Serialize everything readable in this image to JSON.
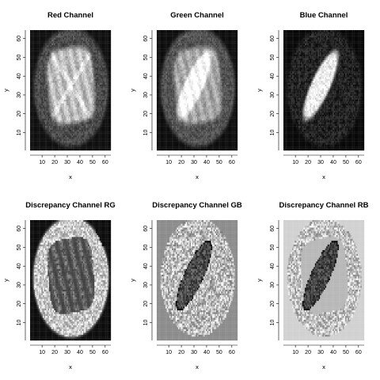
{
  "chart_data": [
    {
      "type": "heatmap",
      "title": "Red Channel",
      "xlabel": "x",
      "ylabel": "y",
      "xlim": [
        1,
        64
      ],
      "ylim": [
        1,
        64
      ],
      "xticks": [
        "10",
        "20",
        "30",
        "40",
        "50",
        "60"
      ],
      "yticks": [
        "10",
        "20",
        "30",
        "40",
        "50",
        "60"
      ],
      "pattern": "red"
    },
    {
      "type": "heatmap",
      "title": "Green Channel",
      "xlabel": "x",
      "ylabel": "y",
      "xlim": [
        1,
        64
      ],
      "ylim": [
        1,
        64
      ],
      "xticks": [
        "10",
        "20",
        "30",
        "40",
        "50",
        "60"
      ],
      "yticks": [
        "10",
        "20",
        "30",
        "40",
        "50",
        "60"
      ],
      "pattern": "green"
    },
    {
      "type": "heatmap",
      "title": "Blue Channel",
      "xlabel": "x",
      "ylabel": "y",
      "xlim": [
        1,
        64
      ],
      "ylim": [
        1,
        64
      ],
      "xticks": [
        "10",
        "20",
        "30",
        "40",
        "50",
        "60"
      ],
      "yticks": [
        "10",
        "20",
        "30",
        "40",
        "50",
        "60"
      ],
      "pattern": "blue"
    },
    {
      "type": "heatmap",
      "title": "Discrepancy Channel RG",
      "xlabel": "x",
      "ylabel": "y",
      "xlim": [
        1,
        64
      ],
      "ylim": [
        1,
        64
      ],
      "xticks": [
        "10",
        "20",
        "30",
        "40",
        "50",
        "60"
      ],
      "yticks": [
        "10",
        "20",
        "30",
        "40",
        "50",
        "60"
      ],
      "pattern": "rg"
    },
    {
      "type": "heatmap",
      "title": "Discrepancy Channel GB",
      "xlabel": "x",
      "ylabel": "y",
      "xlim": [
        1,
        64
      ],
      "ylim": [
        1,
        64
      ],
      "xticks": [
        "10",
        "20",
        "30",
        "40",
        "50",
        "60"
      ],
      "yticks": [
        "10",
        "20",
        "30",
        "40",
        "50",
        "60"
      ],
      "pattern": "gb"
    },
    {
      "type": "heatmap",
      "title": "Discrepancy Channel RB",
      "xlabel": "x",
      "ylabel": "y",
      "xlim": [
        1,
        64
      ],
      "ylim": [
        1,
        64
      ],
      "xticks": [
        "10",
        "20",
        "30",
        "40",
        "50",
        "60"
      ],
      "yticks": [
        "10",
        "20",
        "30",
        "40",
        "50",
        "60"
      ],
      "pattern": "rb"
    }
  ]
}
